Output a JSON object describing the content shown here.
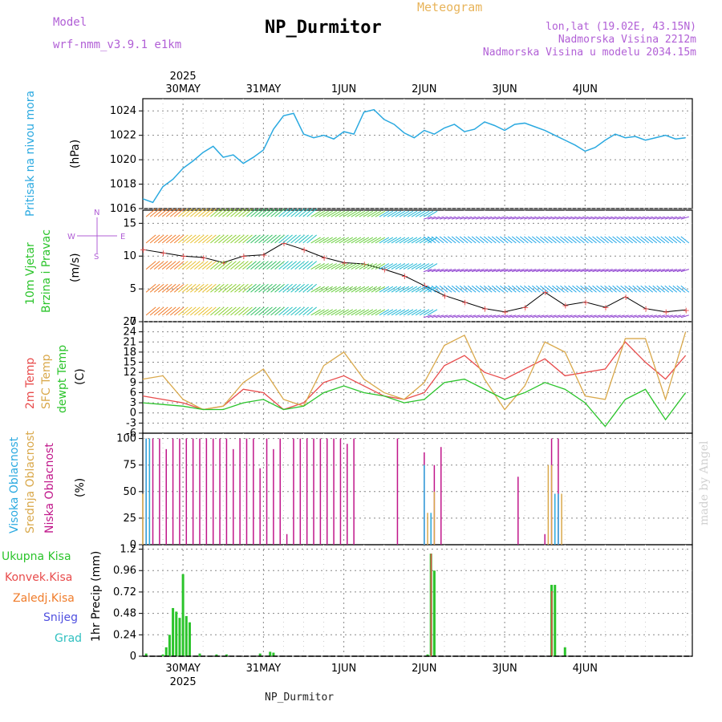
{
  "header": {
    "model_label": "Model",
    "model_name": "wrf-nmm_v3.9.1 e1km",
    "title": "Meteogram",
    "station": "NP_Durmitor",
    "lonlat": "lon,lat (19.02E, 43.15N)",
    "elevation": "Nadmorska Visina 2212m",
    "elevation_model": "Nadmorska Visina u modelu 2034.15m"
  },
  "footer": {
    "station": "NP_Durmitor"
  },
  "watermark": "made by Angel",
  "time_axis": {
    "year": "2025",
    "days": [
      "30MAY",
      "31MAY",
      "1JUN",
      "2JUN",
      "3JUN",
      "4JUN"
    ]
  },
  "colors": {
    "pressure": "#2aa9e0",
    "temp2m": "#e84b4b",
    "sfc_temp": "#d9a84a",
    "dewpoint": "#2bc42b",
    "high_cloud": "#2aa9e0",
    "mid_cloud": "#d9a84a",
    "low_cloud": "#c0168a",
    "total_precip": "#2bc42b",
    "conv_precip": "#e84b4b",
    "frozen_precip": "#f07c2a",
    "snow": "#5050e0",
    "hail": "#30c0c0"
  },
  "panels": {
    "pressure": {
      "label_main": "Pritisak na nivou mora",
      "unit": "(hPa)",
      "ticks": [
        "1016",
        "1018",
        "1020",
        "1022",
        "1024"
      ]
    },
    "wind": {
      "label_line1": "10m Vjetar",
      "label_line2": "Brzina i Pravac",
      "unit": "(m/s)",
      "ticks": [
        "0",
        "5",
        "10",
        "15"
      ],
      "compass_n": "N",
      "compass_s": "S",
      "compass_w": "W",
      "compass_e": "E"
    },
    "temperature": {
      "label_2m": "2m Temp",
      "label_sfc": "SFC Temp",
      "label_dewpt": "dewpt Temp",
      "unit": "(C)",
      "ticks": [
        "-6",
        "-3",
        "0",
        "3",
        "6",
        "9",
        "12",
        "15",
        "18",
        "21",
        "24",
        "27"
      ]
    },
    "clouds": {
      "label_high": "Visoka Oblacnost",
      "label_mid": "Srednja Oblacnost",
      "label_low": "Niska Oblacnost",
      "unit": "(%)",
      "ticks": [
        "0",
        "25",
        "50",
        "75",
        "100"
      ]
    },
    "precip": {
      "unit": "1hr Precip (mm)",
      "ticks": [
        "0",
        "0.24",
        "0.48",
        "0.72",
        "0.96",
        "1.2"
      ],
      "legend": [
        "Ukupna Kisa",
        "Konvek.Kisa",
        "Zaledj.Kisa",
        "Snijeg",
        "Grad"
      ]
    }
  },
  "chart_data": [
    {
      "type": "line",
      "title": "Pritisak na nivou mora",
      "ylabel": "(hPa)",
      "ylim": [
        1016,
        1025
      ],
      "x_unit": "hours from 29MAY 12UTC",
      "series": [
        {
          "name": "pressure",
          "x": [
            0,
            3,
            6,
            9,
            12,
            15,
            18,
            21,
            24,
            27,
            30,
            33,
            36,
            39,
            42,
            45,
            48,
            51,
            54,
            57,
            60,
            63,
            66,
            69,
            72,
            75,
            78,
            81,
            84,
            87,
            90,
            93,
            96,
            99,
            102,
            105,
            108,
            111,
            114,
            117,
            120,
            123,
            126,
            129,
            132,
            135,
            138,
            141,
            144,
            147,
            150,
            153,
            156,
            159,
            162
          ],
          "values": [
            1016.8,
            1016.5,
            1017.8,
            1018.4,
            1019.3,
            1019.9,
            1020.6,
            1021.1,
            1020.2,
            1020.4,
            1019.7,
            1020.2,
            1020.8,
            1022.5,
            1023.6,
            1023.8,
            1022.1,
            1021.8,
            1022.0,
            1021.7,
            1022.3,
            1022.1,
            1023.9,
            1024.1,
            1023.3,
            1022.9,
            1022.2,
            1021.8,
            1022.4,
            1022.1,
            1022.6,
            1022.9,
            1022.3,
            1022.5,
            1023.1,
            1022.8,
            1022.4,
            1022.9,
            1023.0,
            1022.7,
            1022.4,
            1022.0,
            1021.6,
            1021.2,
            1020.7,
            1021.0,
            1021.6,
            1022.1,
            1021.8,
            1021.9,
            1021.6,
            1021.8,
            1022.0,
            1021.7,
            1021.8
          ]
        }
      ]
    },
    {
      "type": "line",
      "title": "10m Vjetar Brzina i Pravac",
      "ylabel": "(m/s)",
      "ylim": [
        0,
        17
      ],
      "series": [
        {
          "name": "speed",
          "x": [
            0,
            6,
            12,
            18,
            24,
            30,
            36,
            42,
            48,
            54,
            60,
            66,
            72,
            78,
            84,
            90,
            96,
            102,
            108,
            114,
            120,
            126,
            132,
            138,
            144,
            150,
            156,
            162
          ],
          "values": [
            11,
            10.5,
            10,
            9.8,
            9,
            10,
            10.2,
            12,
            11,
            9.8,
            9,
            8.8,
            8,
            7,
            5.5,
            4,
            3,
            2,
            1.5,
            2.2,
            4.5,
            2.5,
            3,
            2.2,
            3.8,
            2,
            1.5,
            1.8
          ]
        }
      ]
    },
    {
      "type": "line",
      "title": "Temperature",
      "ylabel": "(C)",
      "ylim": [
        -6,
        27
      ],
      "series": [
        {
          "name": "2m Temp",
          "x": [
            0,
            6,
            12,
            18,
            24,
            30,
            36,
            42,
            48,
            54,
            60,
            66,
            72,
            78,
            84,
            90,
            96,
            102,
            108,
            114,
            120,
            126,
            132,
            138,
            144,
            150,
            156,
            162
          ],
          "values": [
            5,
            4,
            3,
            1,
            2,
            7,
            6,
            1,
            3,
            9,
            11,
            8,
            5,
            4,
            6,
            14,
            17,
            12,
            10,
            13,
            16,
            11,
            12,
            13,
            21,
            15,
            10,
            17
          ]
        },
        {
          "name": "SFC Temp",
          "x": [
            0,
            6,
            12,
            18,
            24,
            30,
            36,
            42,
            48,
            54,
            60,
            66,
            72,
            78,
            84,
            90,
            96,
            102,
            108,
            114,
            120,
            126,
            132,
            138,
            144,
            150,
            156,
            162
          ],
          "values": [
            10,
            11,
            4,
            1,
            2,
            9,
            13,
            4,
            2,
            14,
            18,
            10,
            6,
            4,
            9,
            20,
            23,
            10,
            1,
            8,
            21,
            18,
            5,
            4,
            22,
            22,
            4,
            24
          ]
        },
        {
          "name": "dewpt Temp",
          "x": [
            0,
            6,
            12,
            18,
            24,
            30,
            36,
            42,
            48,
            54,
            60,
            66,
            72,
            78,
            84,
            90,
            96,
            102,
            108,
            114,
            120,
            126,
            132,
            138,
            144,
            150,
            156,
            162
          ],
          "values": [
            3,
            2.5,
            2,
            1,
            1,
            3,
            4,
            1,
            2,
            6,
            8,
            6,
            5,
            3,
            4,
            9,
            10,
            7,
            4,
            6,
            9,
            7,
            3,
            -4,
            4,
            7,
            -2,
            6
          ]
        }
      ]
    },
    {
      "type": "bar",
      "title": "Oblacnost",
      "ylabel": "(%)",
      "ylim": [
        0,
        100
      ],
      "series": [
        {
          "name": "Niska Oblacnost",
          "x": [
            1,
            3,
            5,
            7,
            9,
            11,
            13,
            15,
            17,
            19,
            21,
            23,
            25,
            27,
            29,
            31,
            33,
            35,
            37,
            39,
            41,
            43,
            45,
            47,
            49,
            51,
            53,
            55,
            57,
            59,
            61,
            63,
            76,
            84,
            87,
            89,
            112,
            120,
            122,
            124
          ],
          "values": [
            100,
            100,
            100,
            90,
            100,
            100,
            100,
            100,
            100,
            100,
            100,
            100,
            100,
            90,
            100,
            100,
            100,
            72,
            100,
            90,
            100,
            10,
            100,
            100,
            100,
            100,
            100,
            100,
            100,
            100,
            95,
            100,
            100,
            87,
            75,
            92,
            64,
            10,
            100,
            100
          ]
        },
        {
          "name": "Srednja Oblacnost",
          "x": [
            0,
            2,
            85,
            86,
            87,
            121,
            122,
            123,
            125
          ],
          "values": [
            48,
            100,
            30,
            28,
            50,
            75,
            75,
            42,
            48
          ]
        },
        {
          "name": "Visoka Oblacnost",
          "x": [
            1,
            2,
            84,
            86,
            123,
            124
          ],
          "values": [
            100,
            100,
            75,
            30,
            48,
            48
          ]
        }
      ]
    },
    {
      "type": "bar",
      "title": "1hr Precip",
      "ylabel": "1hr Precip (mm)",
      "ylim": [
        0,
        1.2
      ],
      "series": [
        {
          "name": "Ukupna Kisa",
          "x": [
            1,
            6,
            7,
            8,
            9,
            10,
            11,
            12,
            13,
            14,
            17,
            22,
            25,
            35,
            38,
            39,
            85,
            86,
            87,
            122,
            123,
            126
          ],
          "values": [
            0.03,
            0.02,
            0.1,
            0.24,
            0.54,
            0.5,
            0.43,
            0.92,
            0.45,
            0.38,
            0.03,
            0.02,
            0.02,
            0.03,
            0.05,
            0.04,
            0.02,
            1.15,
            0.96,
            0.8,
            0.8,
            0.1
          ]
        },
        {
          "name": "Konvek.Kisa",
          "x": [
            86,
            122
          ],
          "values": [
            1.15,
            0.73
          ]
        }
      ]
    }
  ]
}
